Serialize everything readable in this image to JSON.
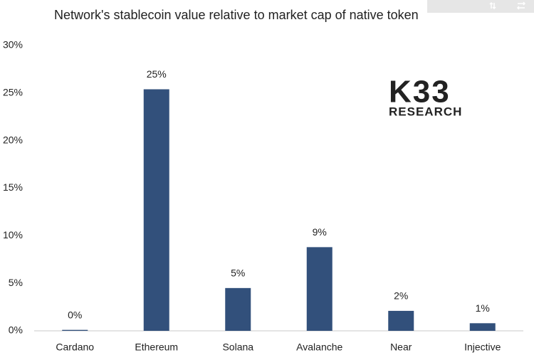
{
  "chart_data": {
    "type": "bar",
    "title": "Network's stablecoin value relative to market cap of native token",
    "logo": [
      "K33",
      "RESEARCH"
    ],
    "categories": [
      "Cardano",
      "Ethereum",
      "Solana",
      "Avalanche",
      "Near",
      "Injective"
    ],
    "values": [
      0.1,
      25.4,
      4.5,
      8.8,
      2.1,
      0.8
    ],
    "value_labels": [
      "0%",
      "25%",
      "5%",
      "9%",
      "2%",
      "1%"
    ],
    "color": "#32507b",
    "ylim": [
      0,
      30
    ],
    "yticks": [
      {
        "value": 0,
        "label": "0%"
      },
      {
        "value": 5,
        "label": "5%"
      },
      {
        "value": 10,
        "label": "10%"
      },
      {
        "value": 15,
        "label": "15%"
      },
      {
        "value": 20,
        "label": "20%"
      },
      {
        "value": 25,
        "label": "25%"
      },
      {
        "value": 30,
        "label": "30%"
      }
    ],
    "grid": false
  }
}
